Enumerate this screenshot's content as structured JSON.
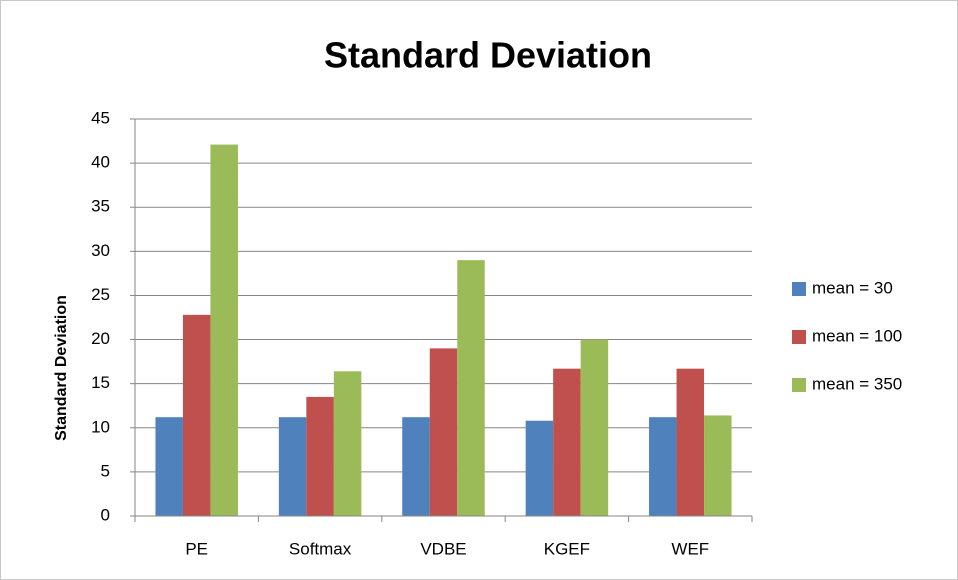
{
  "chart_data": {
    "type": "bar",
    "title": "Standard Deviation",
    "y_label": "Standard Deviation",
    "categories": [
      "PE",
      "Softmax",
      "VDBE",
      "KGEF",
      "WEF"
    ],
    "series": [
      {
        "name": "mean = 30",
        "color": "#4f81bd",
        "values": [
          11.2,
          11.2,
          11.2,
          10.8,
          11.2
        ]
      },
      {
        "name": "mean = 100",
        "color": "#c0504d",
        "values": [
          22.8,
          13.5,
          19,
          16.7,
          16.7
        ]
      },
      {
        "name": "mean = 350",
        "color": "#9bbb59",
        "values": [
          42.1,
          16.4,
          29,
          20,
          11.4
        ]
      }
    ],
    "ylim": [
      0,
      45
    ],
    "yticks": [
      0,
      5,
      10,
      15,
      20,
      25,
      30,
      35,
      40,
      45
    ],
    "grid": true,
    "legend": "right"
  }
}
